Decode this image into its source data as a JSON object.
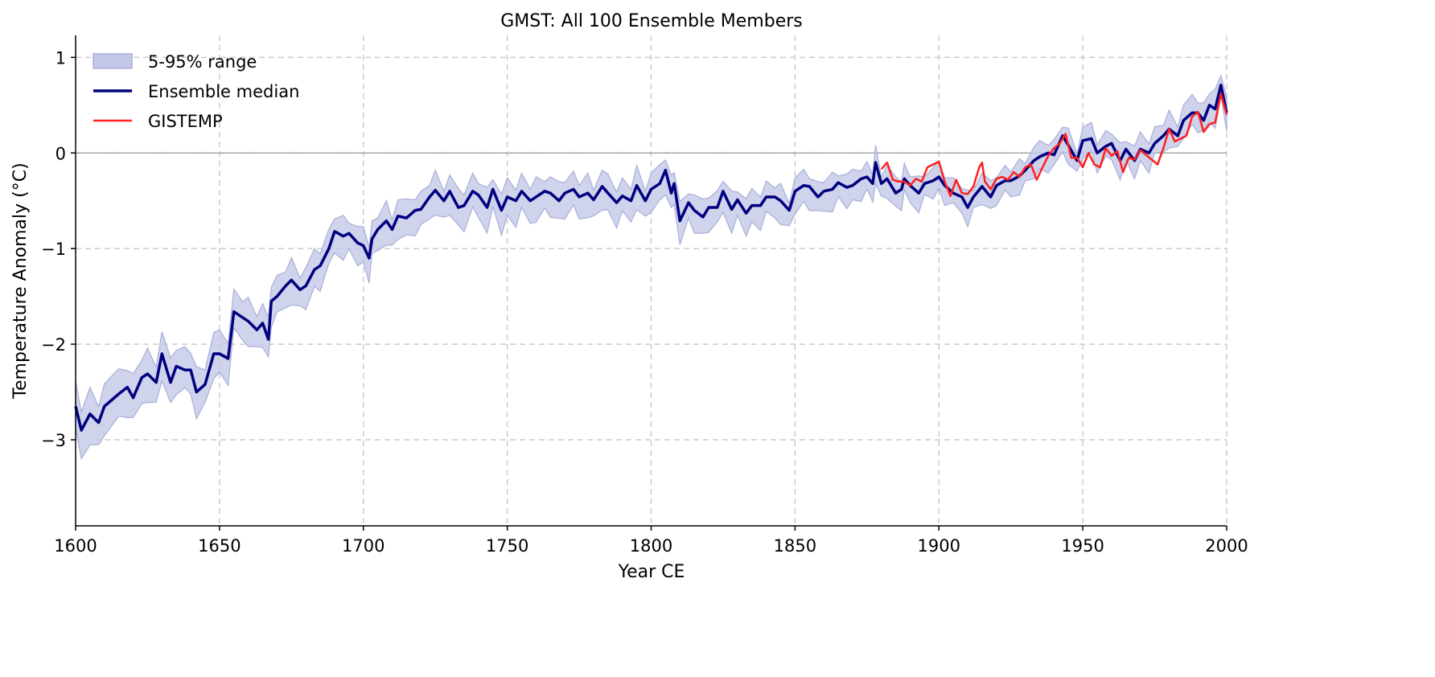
{
  "chart_data": {
    "type": "line",
    "title": "GMST: All 100 Ensemble Members",
    "xlabel": "Year CE",
    "ylabel": "Temperature Anomaly (°C)",
    "xlim": [
      1600,
      2000
    ],
    "ylim": [
      -3.9,
      1.23
    ],
    "xticks": [
      1600,
      1650,
      1700,
      1750,
      1800,
      1850,
      1900,
      1950,
      2000
    ],
    "xtick_labels": [
      "1600",
      "1650",
      "1700",
      "1750",
      "1800",
      "1850",
      "1900",
      "1950",
      "2000"
    ],
    "yticks": [
      1,
      0,
      -1,
      -2,
      -3
    ],
    "ytick_labels": [
      "1",
      "0",
      "−1",
      "−2",
      "−3"
    ],
    "grid": true,
    "legend_position": "top-left",
    "colors": {
      "median": "#000080",
      "range_fill": "#c3c8e6",
      "range_edge": "#a9afd9",
      "gistemp": "#ff2020",
      "grid": "#cccccc",
      "zero_line": "#999999"
    },
    "series": [
      {
        "name": "Ensemble median",
        "x": [
          1600,
          1602,
          1605,
          1608,
          1610,
          1615,
          1618,
          1620,
          1623,
          1625,
          1628,
          1630,
          1633,
          1635,
          1638,
          1640,
          1642,
          1645,
          1648,
          1650,
          1653,
          1655,
          1658,
          1660,
          1663,
          1665,
          1667,
          1668,
          1670,
          1673,
          1675,
          1678,
          1680,
          1683,
          1685,
          1688,
          1690,
          1693,
          1695,
          1698,
          1700,
          1702,
          1703,
          1705,
          1708,
          1710,
          1712,
          1715,
          1718,
          1720,
          1723,
          1725,
          1728,
          1730,
          1733,
          1735,
          1738,
          1740,
          1743,
          1745,
          1748,
          1750,
          1753,
          1755,
          1758,
          1760,
          1763,
          1765,
          1768,
          1770,
          1773,
          1775,
          1778,
          1780,
          1783,
          1785,
          1788,
          1790,
          1793,
          1795,
          1798,
          1800,
          1803,
          1805,
          1807,
          1808,
          1810,
          1813,
          1815,
          1818,
          1820,
          1823,
          1825,
          1828,
          1830,
          1833,
          1835,
          1838,
          1840,
          1843,
          1845,
          1848,
          1850,
          1853,
          1855,
          1858,
          1860,
          1863,
          1865,
          1868,
          1870,
          1873,
          1875,
          1877,
          1878,
          1880,
          1882,
          1885,
          1887,
          1888,
          1890,
          1893,
          1895,
          1898,
          1900,
          1902,
          1905,
          1908,
          1910,
          1912,
          1915,
          1918,
          1920,
          1923,
          1925,
          1928,
          1930,
          1933,
          1935,
          1938,
          1940,
          1943,
          1945,
          1948,
          1950,
          1953,
          1955,
          1958,
          1960,
          1963,
          1965,
          1968,
          1970,
          1973,
          1975,
          1978,
          1980,
          1983,
          1985,
          1988,
          1990,
          1992,
          1994,
          1996,
          1998,
          2000
        ],
        "y": [
          -2.65,
          -2.9,
          -2.73,
          -2.82,
          -2.65,
          -2.52,
          -2.45,
          -2.56,
          -2.35,
          -2.31,
          -2.4,
          -2.1,
          -2.4,
          -2.23,
          -2.27,
          -2.27,
          -2.5,
          -2.42,
          -2.1,
          -2.1,
          -2.15,
          -1.66,
          -1.72,
          -1.76,
          -1.85,
          -1.78,
          -1.95,
          -1.55,
          -1.5,
          -1.39,
          -1.33,
          -1.43,
          -1.39,
          -1.22,
          -1.18,
          -1.0,
          -0.82,
          -0.87,
          -0.84,
          -0.94,
          -0.97,
          -1.1,
          -0.9,
          -0.8,
          -0.71,
          -0.8,
          -0.66,
          -0.68,
          -0.6,
          -0.59,
          -0.46,
          -0.39,
          -0.5,
          -0.4,
          -0.57,
          -0.55,
          -0.4,
          -0.44,
          -0.57,
          -0.38,
          -0.6,
          -0.46,
          -0.5,
          -0.4,
          -0.5,
          -0.46,
          -0.4,
          -0.42,
          -0.5,
          -0.42,
          -0.38,
          -0.46,
          -0.42,
          -0.49,
          -0.35,
          -0.42,
          -0.52,
          -0.45,
          -0.5,
          -0.34,
          -0.5,
          -0.38,
          -0.32,
          -0.18,
          -0.42,
          -0.32,
          -0.71,
          -0.52,
          -0.6,
          -0.67,
          -0.57,
          -0.57,
          -0.4,
          -0.59,
          -0.49,
          -0.63,
          -0.55,
          -0.55,
          -0.46,
          -0.46,
          -0.5,
          -0.6,
          -0.4,
          -0.34,
          -0.35,
          -0.46,
          -0.4,
          -0.38,
          -0.31,
          -0.36,
          -0.34,
          -0.27,
          -0.25,
          -0.32,
          -0.1,
          -0.32,
          -0.27,
          -0.42,
          -0.38,
          -0.27,
          -0.34,
          -0.42,
          -0.32,
          -0.29,
          -0.25,
          -0.34,
          -0.42,
          -0.46,
          -0.57,
          -0.46,
          -0.35,
          -0.46,
          -0.34,
          -0.29,
          -0.29,
          -0.24,
          -0.18,
          -0.08,
          -0.04,
          0.0,
          -0.02,
          0.18,
          0.08,
          -0.08,
          0.13,
          0.15,
          0.0,
          0.07,
          0.1,
          -0.08,
          0.04,
          -0.08,
          0.04,
          0.0,
          0.1,
          0.18,
          0.25,
          0.18,
          0.34,
          0.42,
          0.42,
          0.34,
          0.5,
          0.46,
          0.71,
          0.42
        ]
      },
      {
        "name": "GISTEMP",
        "x": [
          1880,
          1882,
          1884,
          1886,
          1888,
          1890,
          1892,
          1894,
          1896,
          1898,
          1900,
          1902,
          1904,
          1906,
          1908,
          1910,
          1912,
          1914,
          1915,
          1916,
          1918,
          1920,
          1922,
          1924,
          1926,
          1928,
          1930,
          1932,
          1934,
          1936,
          1938,
          1940,
          1942,
          1944,
          1946,
          1948,
          1950,
          1952,
          1954,
          1956,
          1958,
          1960,
          1962,
          1964,
          1966,
          1968,
          1970,
          1972,
          1974,
          1976,
          1978,
          1980,
          1982,
          1984,
          1986,
          1988,
          1990,
          1992,
          1994,
          1996,
          1998,
          2000
        ],
        "y": [
          -0.17,
          -0.1,
          -0.28,
          -0.3,
          -0.3,
          -0.34,
          -0.27,
          -0.3,
          -0.15,
          -0.12,
          -0.09,
          -0.3,
          -0.45,
          -0.28,
          -0.42,
          -0.43,
          -0.35,
          -0.15,
          -0.1,
          -0.3,
          -0.38,
          -0.27,
          -0.25,
          -0.28,
          -0.2,
          -0.25,
          -0.15,
          -0.12,
          -0.28,
          -0.15,
          -0.03,
          0.05,
          0.1,
          0.2,
          -0.05,
          -0.05,
          -0.15,
          0.0,
          -0.12,
          -0.15,
          0.05,
          -0.03,
          0.02,
          -0.2,
          -0.05,
          -0.07,
          0.03,
          -0.02,
          -0.07,
          -0.12,
          0.05,
          0.25,
          0.12,
          0.15,
          0.18,
          0.38,
          0.43,
          0.22,
          0.3,
          0.32,
          0.62,
          0.4
        ]
      }
    ],
    "range": {
      "name": "5-95% range",
      "x": [
        1600,
        1650,
        1700,
        1750,
        1800,
        1850,
        1900,
        1950,
        2000
      ],
      "below_median": [
        0.28,
        0.22,
        0.2,
        0.22,
        0.2,
        0.2,
        0.15,
        0.15,
        0.15
      ],
      "above_median": [
        0.22,
        0.2,
        0.15,
        0.15,
        0.15,
        0.12,
        0.12,
        0.12,
        0.15
      ]
    },
    "legend": [
      {
        "label": "5-95% range",
        "kind": "patch"
      },
      {
        "label": "Ensemble median",
        "kind": "line"
      },
      {
        "label": "GISTEMP",
        "kind": "line"
      }
    ]
  }
}
